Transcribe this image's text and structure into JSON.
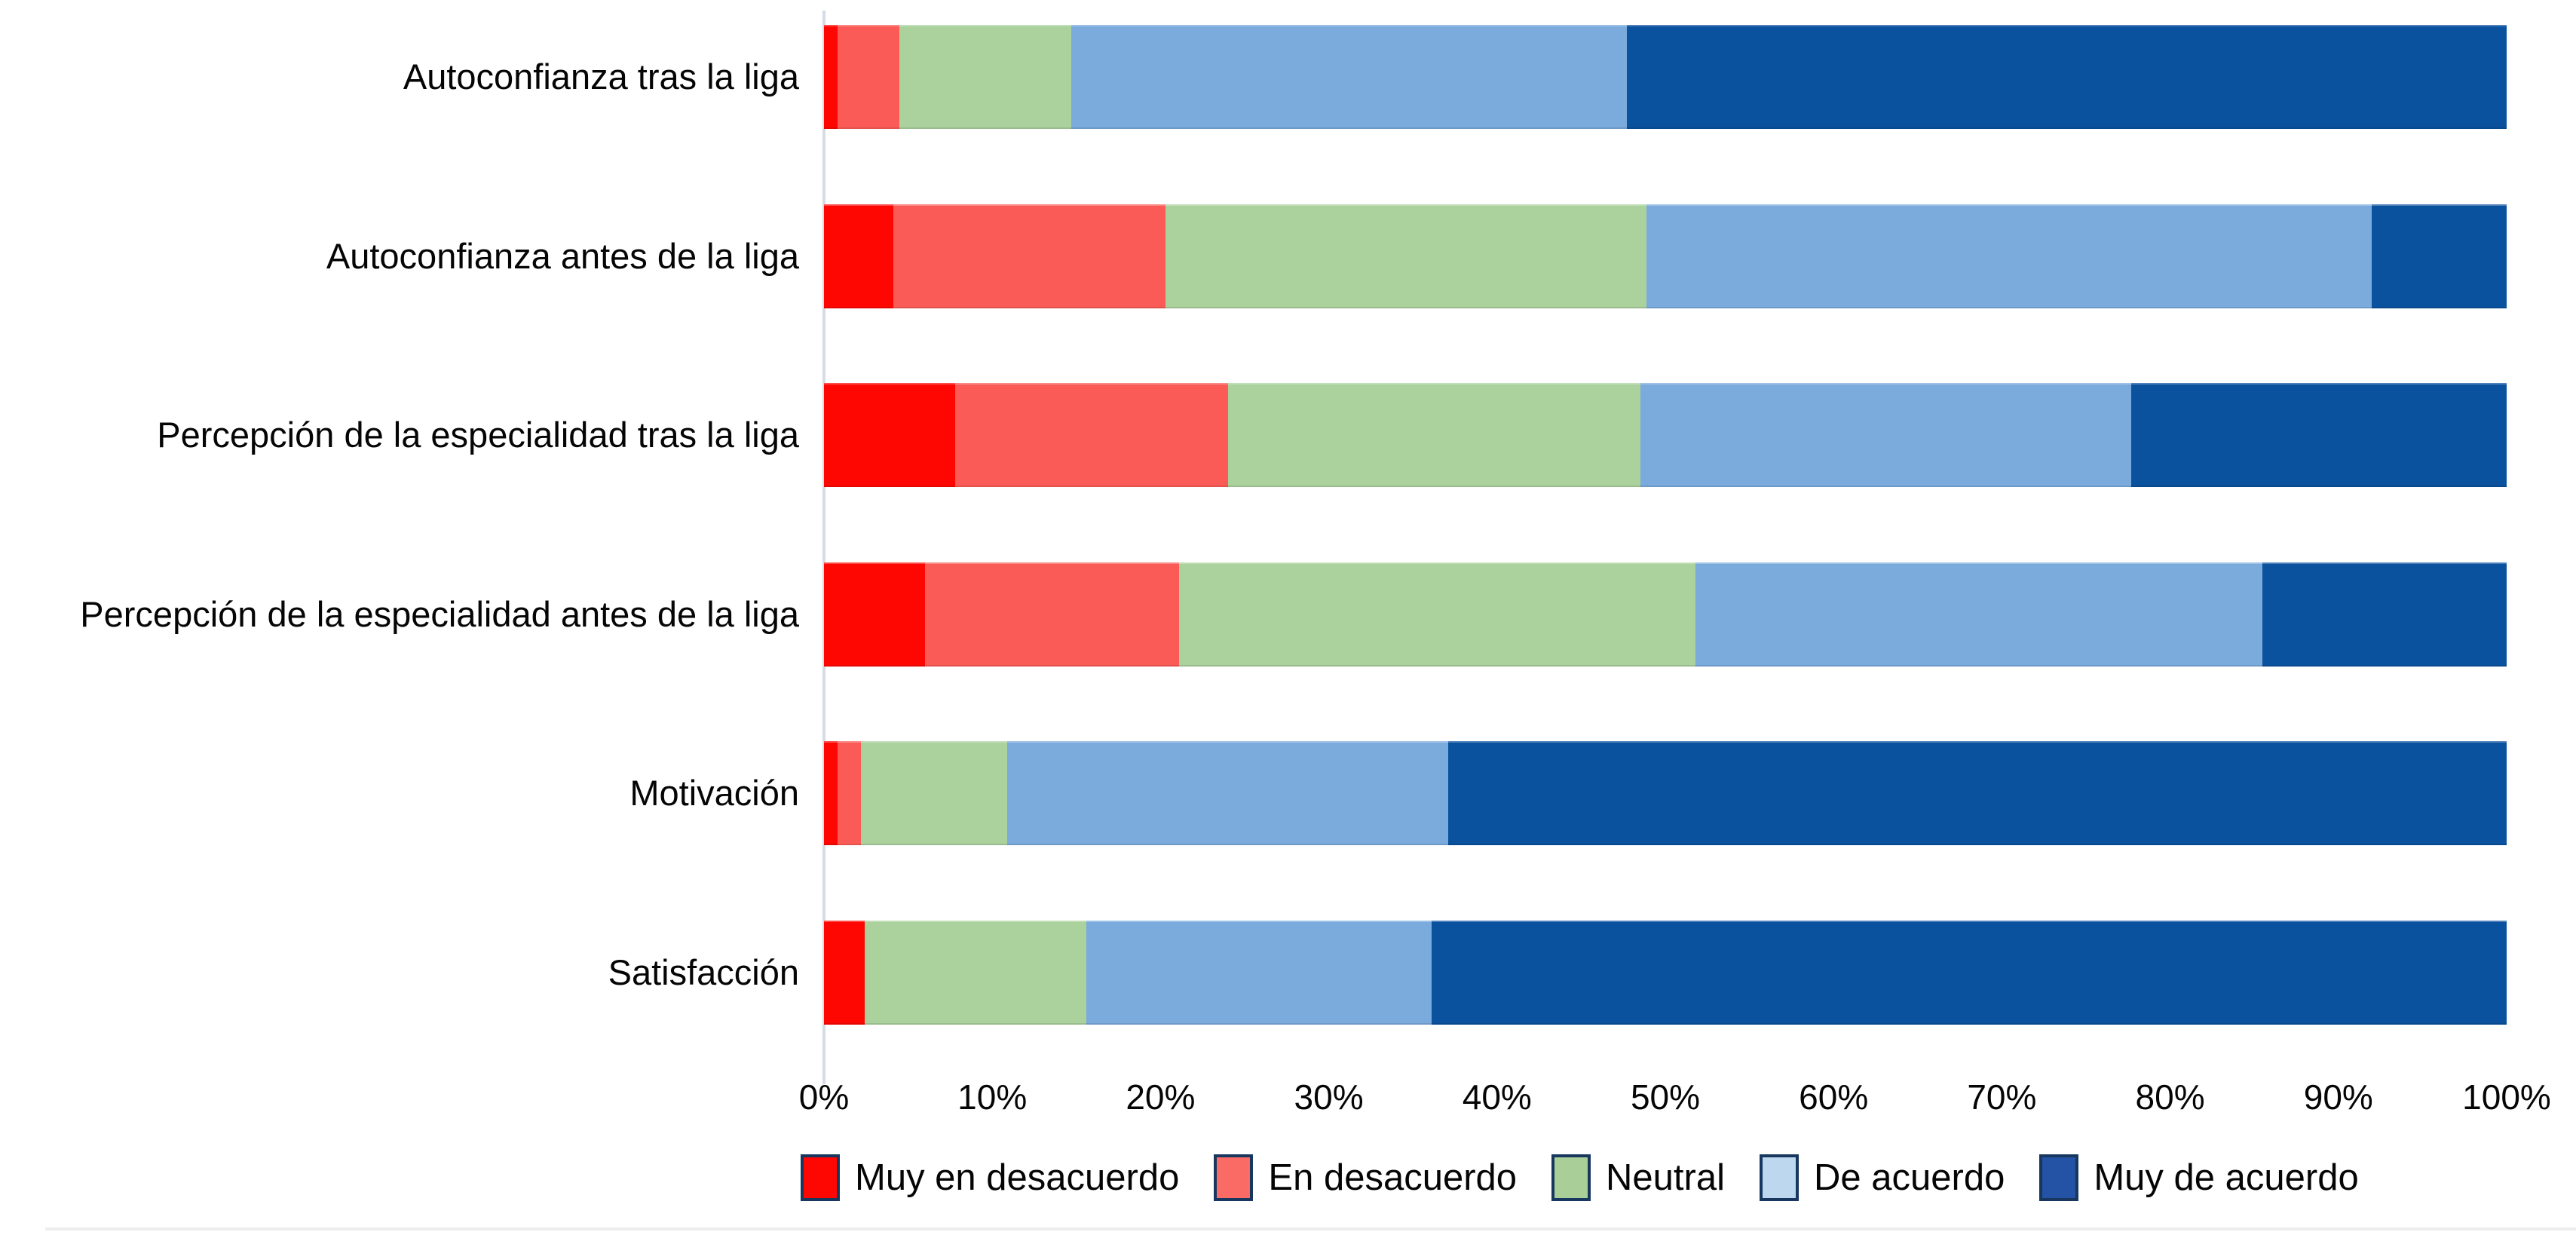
{
  "meta": {
    "background_color": "#FFFFFF",
    "axis_line_color": "#D6DCE5",
    "bottom_rule_color": "#EDEDED",
    "text_color": "#050505",
    "legend_swatch_border_color": "#17375E"
  },
  "chart_data": {
    "type": "bar",
    "variant": "stacked-100",
    "orientation": "horizontal",
    "title": "",
    "xlabel": "",
    "ylabel": "",
    "xlim": [
      0,
      100
    ],
    "grid": false,
    "legend_position": "bottom",
    "categories": [
      "Autoconfianza tras la liga",
      "Autoconfianza antes de la liga",
      "Percepción de la especialidad tras la liga",
      "Percepción de la especialidad antes de la liga",
      "Motivación",
      "Satisfacción"
    ],
    "x_ticks": [
      "0%",
      "10%",
      "20%",
      "30%",
      "40%",
      "50%",
      "60%",
      "70%",
      "80%",
      "90%",
      "100%"
    ],
    "series": [
      {
        "name": "Muy en desacuerdo",
        "color": "#FE0702",
        "legend_color": "#FE0702",
        "values": [
          0.8,
          4.1,
          7.8,
          6.0,
          0.8,
          2.4
        ]
      },
      {
        "name": "En desacuerdo",
        "color": "#FB5B57",
        "legend_color": "#FB6B66",
        "values": [
          3.7,
          16.2,
          16.2,
          15.1,
          1.4,
          0
        ]
      },
      {
        "name": "Neutral",
        "color": "#ABD19D",
        "legend_color": "#A9CE97",
        "values": [
          10.2,
          28.6,
          24.5,
          30.7,
          8.7,
          13.2
        ]
      },
      {
        "name": "De acuerdo",
        "color": "#7BAADD",
        "legend_color": "#BDD7EE",
        "values": [
          33.0,
          43.1,
          29.2,
          33.7,
          26.2,
          20.5
        ]
      },
      {
        "name": "Muy de acuerdo",
        "color": "#0A519E",
        "legend_color": "#2453A6",
        "values": [
          52.3,
          8.0,
          22.3,
          14.5,
          62.9,
          63.9
        ]
      }
    ]
  }
}
